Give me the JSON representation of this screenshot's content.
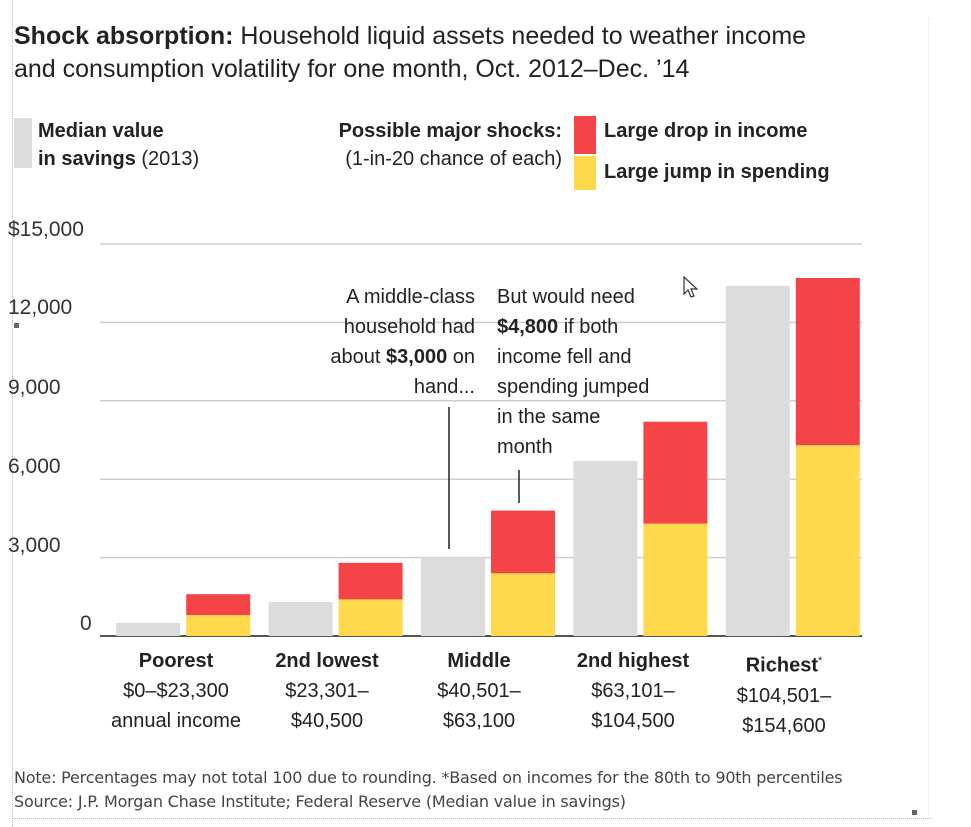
{
  "title": {
    "bold": "Shock absorption:",
    "line1_rest": " Household liquid assets needed to weather income",
    "line2": "and consumption volatility for one month, Oct. 2012–Dec. ’14"
  },
  "legend": {
    "median": {
      "bold": "Median value",
      "bold2": "in savings",
      "suffix": " (2013)",
      "color": "#dcdcdc"
    },
    "shocks": {
      "line1": "Possible major shocks:",
      "line2": "(1-in-20 chance of each)"
    },
    "income": {
      "label": "Large drop in income",
      "color": "#f54447"
    },
    "spending": {
      "label": "Large jump in spending",
      "color": "#fdd94b"
    }
  },
  "annotations": {
    "left": {
      "l1": "A middle-class",
      "l2": "household had",
      "l3_pre": "about ",
      "l3_bold": "$3,000",
      "l3_post": " on",
      "l4": "hand..."
    },
    "right": {
      "l1": "But would need",
      "l2_bold": "$4,800",
      "l2_post": " if both",
      "l3": "income fell and",
      "l4": "spending jumped",
      "l5": "in the same",
      "l6": "month"
    }
  },
  "chart_data": {
    "type": "bar",
    "stacked_series": [
      "spending",
      "income"
    ],
    "categories": [
      {
        "name": "Poorest",
        "range1": "$0–$23,300",
        "range2": "annual income",
        "footnote": ""
      },
      {
        "name": "2nd lowest",
        "range1": "$23,301–",
        "range2": "$40,500",
        "footnote": ""
      },
      {
        "name": "Middle",
        "range1": "$40,501–",
        "range2": "$63,100",
        "footnote": ""
      },
      {
        "name": "2nd highest",
        "range1": "$63,101–",
        "range2": "$104,500",
        "footnote": ""
      },
      {
        "name": "Richest",
        "range1": "$104,501–",
        "range2": "$154,600",
        "footnote": "*"
      }
    ],
    "series": [
      {
        "name": "Median value in savings (2013)",
        "key": "median",
        "values": [
          500,
          1300,
          3000,
          6700,
          13400
        ]
      },
      {
        "name": "Large jump in spending",
        "key": "spending",
        "values": [
          800,
          1400,
          2400,
          4300,
          7300
        ]
      },
      {
        "name": "Large drop in income",
        "key": "income",
        "values": [
          800,
          1400,
          2400,
          3900,
          6400
        ]
      }
    ],
    "y_ticks": [
      {
        "value": 0,
        "label": "0"
      },
      {
        "value": 3000,
        "label": "3,000"
      },
      {
        "value": 6000,
        "label": "6,000"
      },
      {
        "value": 9000,
        "label": "9,000"
      },
      {
        "value": 12000,
        "label": "12,000"
      },
      {
        "value": 15000,
        "label": "$15,000"
      }
    ],
    "ylim": [
      0,
      15000
    ],
    "grid": true,
    "colors": {
      "median": "#dcdcdc",
      "spending": "#fdd94b",
      "income": "#f54447",
      "grid": "#cfcfcf",
      "axis": "#555555"
    }
  },
  "notes": {
    "line1": "Note: Percentages may not total 100 due to rounding.  *Based on incomes for the 80th to 90th percentiles",
    "line2": "Source: J.P. Morgan Chase Institute; Federal Reserve (Median value in savings)"
  }
}
